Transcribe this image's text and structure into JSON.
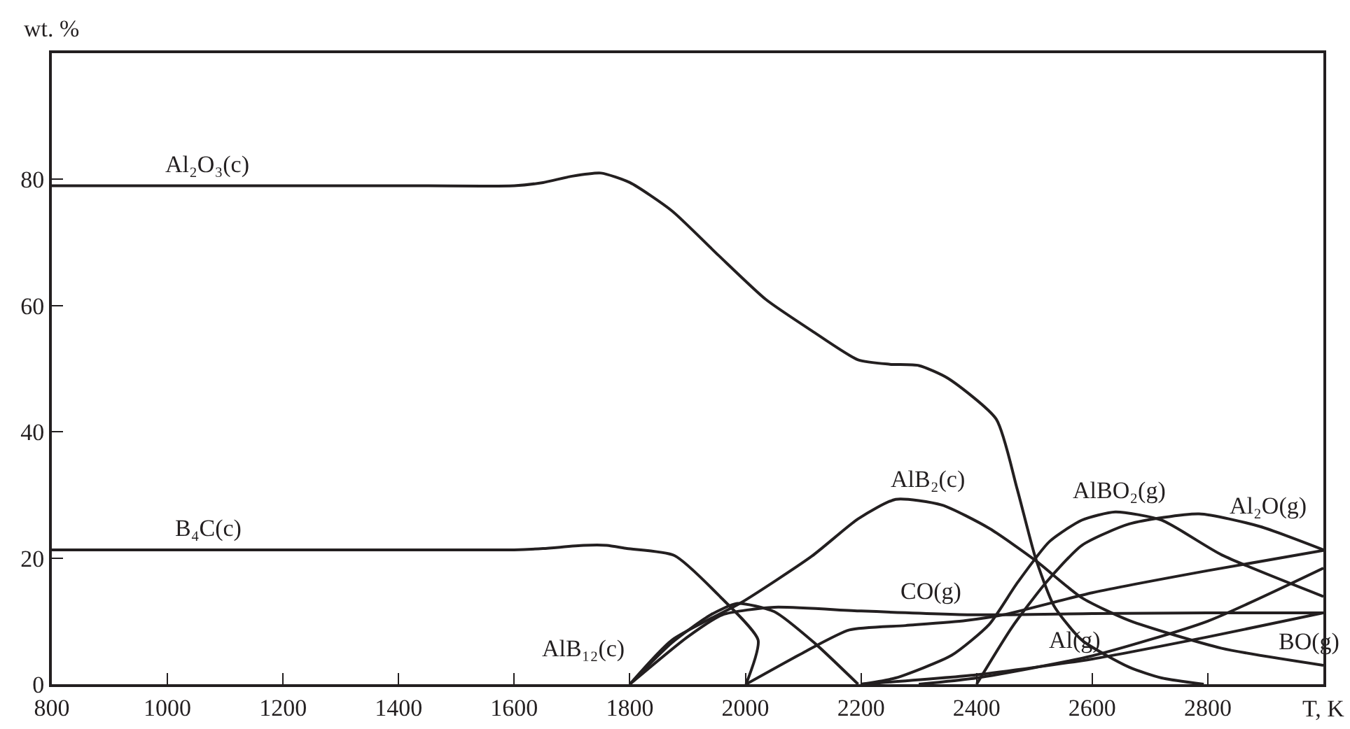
{
  "chart_data": {
    "type": "line",
    "xlabel": "T, K",
    "ylabel": "wt. %",
    "xlim": [
      800,
      3000
    ],
    "ylim": [
      0,
      100
    ],
    "xticks": [
      800,
      1000,
      1200,
      1400,
      1600,
      1800,
      2000,
      2200,
      2400,
      2600,
      2800
    ],
    "yticks": [
      0,
      20,
      40,
      60,
      80
    ],
    "grid": false,
    "marker": "none",
    "line_style": "solid",
    "series": [
      {
        "color": "#231f20",
        "x": [
          800,
          1000,
          1200,
          1400,
          1600,
          1650,
          1700,
          1750,
          1800,
          1873,
          1953,
          2035,
          2115,
          2195,
          2250,
          2300,
          2350,
          2434,
          2470,
          2502,
          2534,
          2582,
          2664,
          2720,
          2793
        ],
        "values": [
          79,
          79,
          79,
          79,
          79,
          79.5,
          80.5,
          81,
          79.5,
          75,
          68,
          61,
          56,
          51.4,
          50.7,
          50.5,
          48.5,
          42,
          31,
          20,
          12.4,
          7,
          2.7,
          1,
          0
        ]
      },
      {
        "color": "#231f20",
        "x": [
          800,
          1000,
          1200,
          1400,
          1600,
          1650,
          1720,
          1760,
          1795,
          1877,
          1957,
          2022,
          2001
        ],
        "values": [
          21.3,
          21.3,
          21.3,
          21.3,
          21.3,
          21.5,
          22,
          22,
          21.5,
          20.4,
          13.8,
          7,
          0
        ]
      },
      {
        "color": "#231f20",
        "x": [
          1800,
          1873,
          1940,
          1986,
          2050,
          2120,
          2195
        ],
        "values": [
          0,
          6.6,
          11,
          12.8,
          11.5,
          6.5,
          0
        ]
      },
      {
        "color": "#231f20",
        "x": [
          1800,
          1900,
          1960,
          2050,
          2200,
          2400,
          2600,
          2800,
          3000
        ],
        "values": [
          0,
          7.5,
          11,
          12.2,
          11.6,
          11,
          11.2,
          11.3,
          11.3
        ]
      },
      {
        "color": "#231f20",
        "x": [
          1800,
          1873,
          1994,
          2115,
          2195,
          2260,
          2340,
          2422,
          2502,
          2582,
          2664,
          2824,
          3000
        ],
        "values": [
          0,
          7,
          13,
          20.3,
          26.2,
          29.3,
          28.4,
          24.7,
          19.6,
          13.7,
          10.1,
          5.7,
          3
        ]
      },
      {
        "color": "#231f20",
        "x": [
          2001,
          2100,
          2180,
          2277,
          2381,
          2446,
          2600,
          2800,
          3000
        ],
        "values": [
          0,
          5,
          8.6,
          9.3,
          10.1,
          11,
          14.5,
          18,
          21.2
        ]
      },
      {
        "color": "#231f20",
        "x": [
          2200,
          2260,
          2357,
          2422,
          2470,
          2526,
          2582,
          2640,
          2720,
          2824,
          3000
        ],
        "values": [
          0,
          1,
          4.6,
          9.5,
          16,
          22.6,
          26,
          27.3,
          26,
          20.5,
          13.9
        ]
      },
      {
        "color": "#231f20",
        "x": [
          2400,
          2461,
          2519,
          2582,
          2664,
          2785,
          2890,
          3000
        ],
        "values": [
          0,
          9,
          16,
          22,
          25.4,
          27,
          25,
          21.3
        ]
      },
      {
        "color": "#231f20",
        "x": [
          2300,
          2400,
          2600,
          2800,
          3000
        ],
        "values": [
          0,
          1,
          4.5,
          10,
          18.4
        ]
      },
      {
        "color": "#231f20",
        "x": [
          2200,
          2400,
          2600,
          2800,
          3000
        ],
        "values": [
          0,
          1.5,
          4,
          7.5,
          11.3
        ]
      }
    ],
    "annotations": [
      {
        "text": "Al₂O₃(c)",
        "x": 1069,
        "y": 79
      },
      {
        "text": "B₄C(c)",
        "x": 1069,
        "y": 21.3
      },
      {
        "text": "AlB₁₂(c)",
        "x": 1800,
        "y": 0
      },
      {
        "text": "AlB₂(c)",
        "x": 2316,
        "y": 29
      },
      {
        "text": "CO(g)",
        "x": 2320,
        "y": 11.2
      },
      {
        "text": "AlBO₂(g)",
        "x": 2647,
        "y": 27.3
      },
      {
        "text": "Al₂O(g)",
        "x": 2904,
        "y": 24.8
      },
      {
        "text": "Al(g)",
        "x": 2570,
        "y": 3.6
      },
      {
        "text": "BO(g)",
        "x": 2974,
        "y": 3.4
      }
    ]
  }
}
